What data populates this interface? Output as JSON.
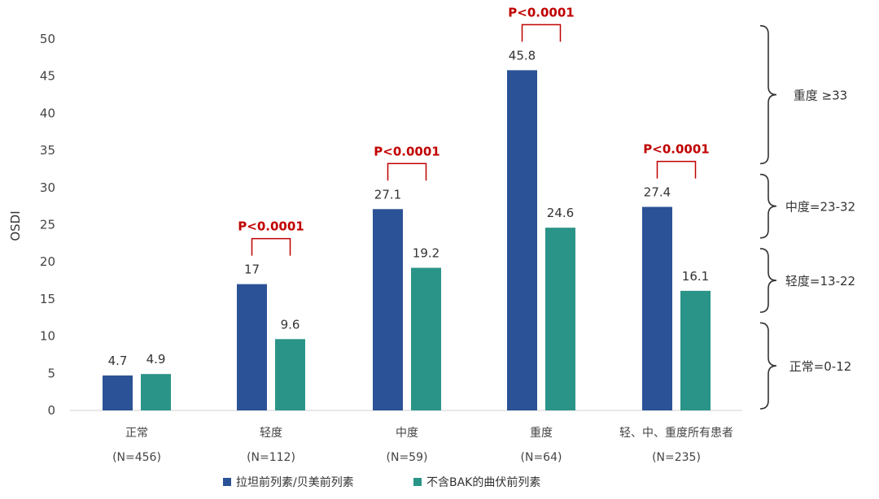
{
  "chart_data": {
    "type": "bar",
    "ylabel": "OSDI",
    "ylim": [
      0,
      50
    ],
    "yticks": [
      0,
      5,
      10,
      15,
      20,
      25,
      30,
      35,
      40,
      45,
      50
    ],
    "categories": [
      {
        "name": "正常",
        "n": "(N=456)"
      },
      {
        "name": "轻度",
        "n": "(N=112)"
      },
      {
        "name": "中度",
        "n": "(N=59)"
      },
      {
        "name": "重度",
        "n": "(N=64)"
      },
      {
        "name": "轻、中、重度所有患者",
        "n": "(N=235)"
      }
    ],
    "series": [
      {
        "name": "拉坦前列素/贝美前列素",
        "color": "#2b5296",
        "values": [
          4.7,
          17,
          27.1,
          45.8,
          27.4
        ],
        "labels": [
          "4.7",
          "17",
          "27.1",
          "45.8",
          "27.4"
        ]
      },
      {
        "name": "不含BAK的曲伏前列素",
        "color": "#2a9488",
        "values": [
          4.9,
          9.6,
          19.2,
          24.6,
          16.1
        ],
        "labels": [
          "4.9",
          "9.6",
          "19.2",
          "24.6",
          "16.1"
        ]
      }
    ],
    "significance": [
      {
        "category_index": 1,
        "label": "P<0.0001"
      },
      {
        "category_index": 2,
        "label": "P<0.0001"
      },
      {
        "category_index": 3,
        "label": "P<0.0001"
      },
      {
        "category_index": 4,
        "label": "P<0.0001"
      }
    ],
    "severity_ranges": [
      {
        "label": "重度 ≥33",
        "from": 33,
        "to": 52
      },
      {
        "label": "中度=23-32",
        "from": 23,
        "to": 32
      },
      {
        "label": "轻度=13-22",
        "from": 13,
        "to": 22
      },
      {
        "label": "正常=0-12",
        "from": 0,
        "to": 12
      }
    ],
    "legend_position": "bottom-center",
    "grid": false,
    "sig_color": "#c00000"
  }
}
